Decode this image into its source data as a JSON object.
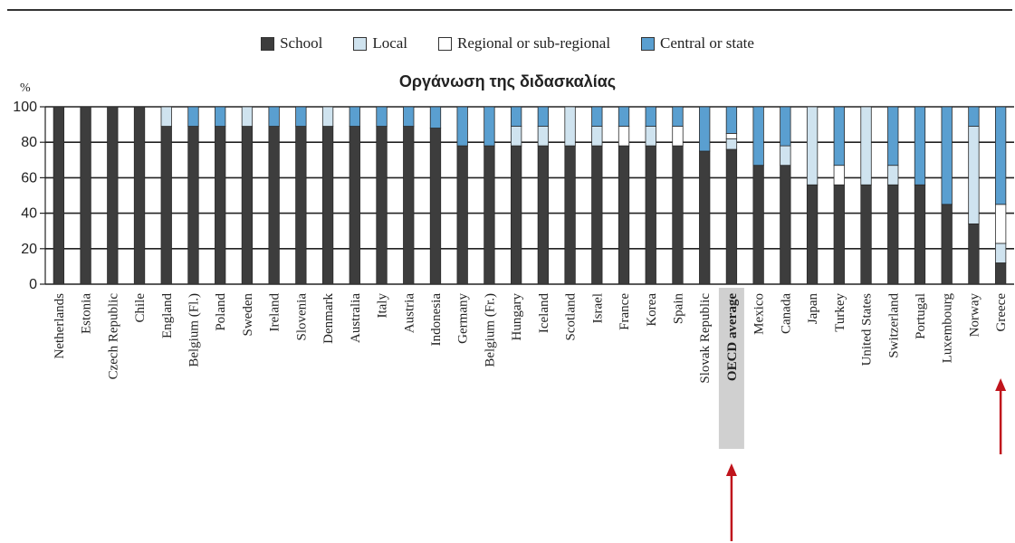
{
  "chart_data": {
    "type": "bar",
    "stacked": true,
    "title": "Οργάνωση της διδασκαλίας",
    "ylabel": "%",
    "ylim": [
      0,
      100
    ],
    "yticks": [
      "0",
      "20",
      "40",
      "60",
      "80",
      "100"
    ],
    "grid": true,
    "legend_position": "top",
    "highlighted_category": "OECD average",
    "arrow_categories": [
      "OECD average",
      "Greece"
    ],
    "categories": [
      "Netherlands",
      "Estonia",
      "Czech Republic",
      "Chile",
      "England",
      "Belgium (Fl.)",
      "Poland",
      "Sweden",
      "Ireland",
      "Slovenia",
      "Denmark",
      "Australia",
      "Italy",
      "Austria",
      "Indonesia",
      "Germany",
      "Belgium (Fr.)",
      "Hungary",
      "Iceland",
      "Scotland",
      "Israel",
      "France",
      "Korea",
      "Spain",
      "Slovak Republic",
      "OECD average",
      "Mexico",
      "Canada",
      "Japan",
      "Turkey",
      "United States",
      "Switzerland",
      "Portugal",
      "Luxembourg",
      "Norway",
      "Greece"
    ],
    "series": [
      {
        "name": "School",
        "color": "#3d3d3d",
        "values": [
          100,
          100,
          100,
          100,
          89,
          89,
          89,
          89,
          89,
          89,
          89,
          89,
          89,
          89,
          88,
          78,
          78,
          78,
          78,
          78,
          78,
          78,
          78,
          78,
          75,
          76,
          67,
          67,
          56,
          56,
          56,
          56,
          56,
          45,
          34,
          12
        ]
      },
      {
        "name": "Local",
        "color": "#cfe3ef",
        "values": [
          0,
          0,
          0,
          0,
          11,
          0,
          0,
          11,
          0,
          0,
          11,
          0,
          0,
          0,
          0,
          0,
          0,
          11,
          11,
          22,
          11,
          0,
          11,
          0,
          0,
          6,
          0,
          11,
          44,
          0,
          44,
          11,
          0,
          0,
          55,
          11
        ]
      },
      {
        "name": "Regional or sub-regional",
        "color": "#ffffff",
        "values": [
          0,
          0,
          0,
          0,
          0,
          0,
          0,
          0,
          0,
          0,
          0,
          0,
          0,
          0,
          0,
          0,
          0,
          0,
          0,
          0,
          0,
          11,
          0,
          11,
          0,
          3,
          0,
          0,
          0,
          11,
          0,
          0,
          0,
          0,
          0,
          22
        ]
      },
      {
        "name": "Central or state",
        "color": "#5a9fd0",
        "values": [
          0,
          0,
          0,
          0,
          0,
          11,
          11,
          0,
          11,
          11,
          0,
          11,
          11,
          11,
          12,
          22,
          22,
          11,
          11,
          0,
          11,
          11,
          11,
          11,
          25,
          15,
          33,
          22,
          0,
          33,
          0,
          33,
          44,
          55,
          11,
          55
        ]
      }
    ]
  }
}
